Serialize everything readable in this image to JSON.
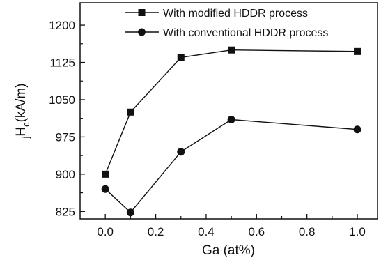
{
  "chart_data": {
    "type": "line",
    "xlabel": "Ga (at%)",
    "ylabel": {
      "prefix": "j",
      "main": "H",
      "sub": "c",
      "units": "(kA/m)"
    },
    "xlim": [
      -0.1,
      1.08
    ],
    "ylim": [
      810,
      1245
    ],
    "xticks": [
      0.0,
      0.2,
      0.4,
      0.6,
      0.8,
      1.0
    ],
    "xtick_labels": [
      "0.0",
      "0.2",
      "0.4",
      "0.6",
      "0.8",
      "1.0"
    ],
    "yticks": [
      825,
      900,
      975,
      1050,
      1125,
      1200
    ],
    "ytick_labels": [
      "825",
      "900",
      "975",
      "1050",
      "1125",
      "1200"
    ],
    "grid": false,
    "legend_position": "top-right",
    "series": [
      {
        "name": "With modified HDDR process",
        "marker": "square",
        "x": [
          0.0,
          0.1,
          0.3,
          0.5,
          1.0
        ],
        "y": [
          900,
          1025,
          1135,
          1150,
          1147
        ]
      },
      {
        "name": "With conventional HDDR process",
        "marker": "circle",
        "x": [
          0.0,
          0.1,
          0.3,
          0.5,
          1.0
        ],
        "y": [
          870,
          823,
          945,
          1010,
          990
        ]
      }
    ]
  }
}
